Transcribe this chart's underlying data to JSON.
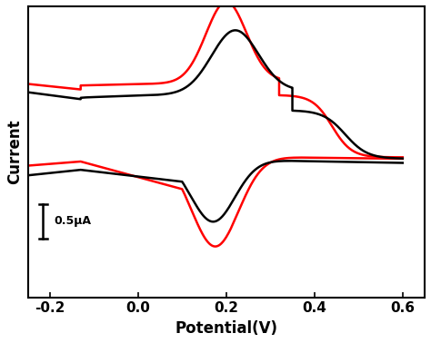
{
  "xlim": [
    -0.25,
    0.65
  ],
  "ylim": [
    -1.05,
    1.05
  ],
  "xticks": [
    -0.2,
    0.0,
    0.2,
    0.4,
    0.6
  ],
  "xlabel": "Potential(V)",
  "ylabel": "Current",
  "scalebar_label": "0.5μA",
  "background_color": "#ffffff",
  "line_width": 1.8,
  "black_color": "#000000",
  "red_color": "#ff0000",
  "figsize": [
    4.74,
    3.78
  ],
  "dpi": 100
}
